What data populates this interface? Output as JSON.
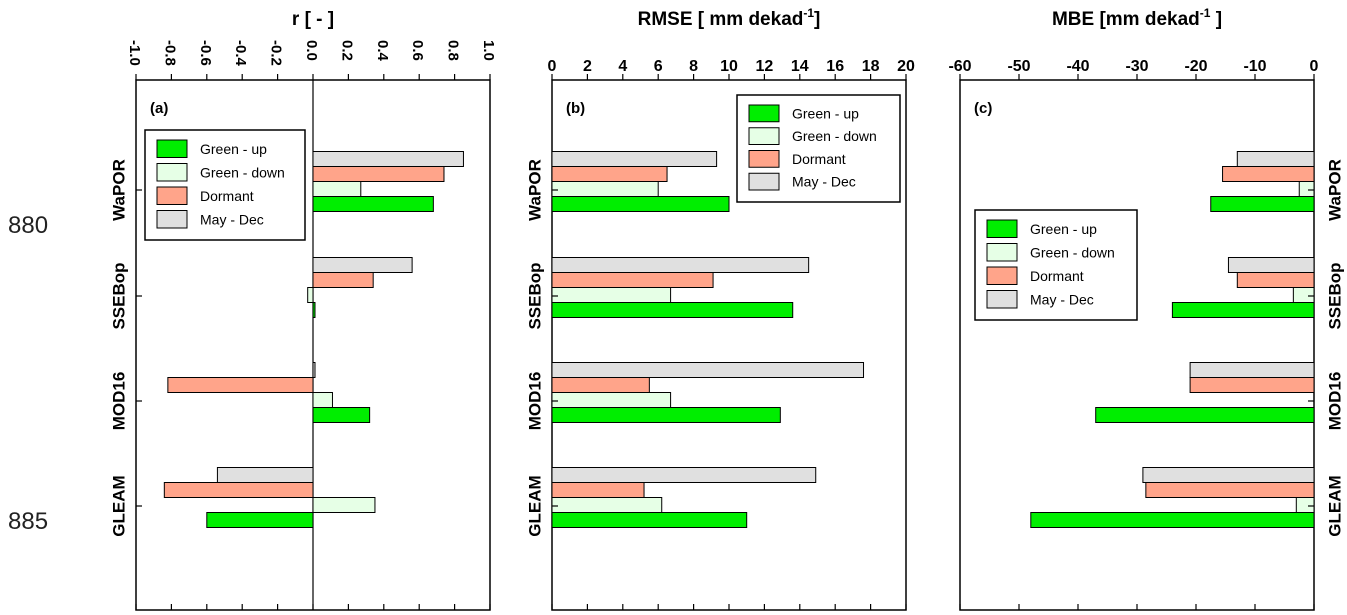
{
  "line_numbers": [
    "880",
    "885"
  ],
  "colors": {
    "green_up": "#00ee00",
    "green_down": "#e6ffe6",
    "dormant": "#ffa48a",
    "may_dec": "#e0e0e0",
    "axis": "#000000"
  },
  "chart_data": [
    {
      "type": "bar",
      "orientation": "horizontal",
      "panel_label": "(a)",
      "title": "r [ - ]",
      "title_sup": "",
      "title_tail": "",
      "xlim": [
        -1.0,
        1.0
      ],
      "x_ticks": [
        "-1.0",
        "-0.8",
        "-0.6",
        "-0.4",
        "-0.2",
        "0.0",
        "0.2",
        "0.4",
        "0.6",
        "0.8",
        "1.0"
      ],
      "x_axis_position": "top",
      "categories": [
        "WaPOR",
        "SSEBop",
        "MOD16",
        "GLEAM"
      ],
      "category_label_side": "left",
      "zero_line": true,
      "legend": {
        "placement": "upper-left",
        "entries": [
          "Green - up",
          "Green - down",
          "Dormant",
          "May - Dec"
        ]
      },
      "series": [
        {
          "name": "Green - up",
          "values": [
            0.68,
            0.01,
            0.32,
            -0.6
          ]
        },
        {
          "name": "Green - down",
          "values": [
            0.27,
            -0.03,
            0.11,
            0.35
          ]
        },
        {
          "name": "Dormant",
          "values": [
            0.74,
            0.34,
            -0.82,
            -0.84
          ]
        },
        {
          "name": "May - Dec",
          "values": [
            0.85,
            0.56,
            0.01,
            -0.54
          ]
        }
      ]
    },
    {
      "type": "bar",
      "orientation": "horizontal",
      "panel_label": "(b)",
      "title": "RMSE [ mm dekad",
      "title_sup": "-1",
      "title_tail": "]",
      "xlim": [
        0,
        20
      ],
      "x_ticks": [
        "0",
        "2",
        "4",
        "6",
        "8",
        "10",
        "12",
        "14",
        "16",
        "18",
        "20"
      ],
      "x_axis_position": "top",
      "categories": [
        "WaPOR",
        "SSEBop",
        "MOD16",
        "GLEAM"
      ],
      "category_label_side": "left",
      "zero_line": false,
      "legend": {
        "placement": "upper-right",
        "entries": [
          "Green - up",
          "Green - down",
          "Dormant",
          "May - Dec"
        ]
      },
      "series": [
        {
          "name": "Green - up",
          "values": [
            10.0,
            13.6,
            12.9,
            11.0
          ]
        },
        {
          "name": "Green - down",
          "values": [
            6.0,
            6.7,
            6.7,
            6.2
          ]
        },
        {
          "name": "Dormant",
          "values": [
            6.5,
            9.1,
            5.5,
            5.2
          ]
        },
        {
          "name": "May - Dec",
          "values": [
            9.3,
            14.5,
            17.6,
            14.9
          ]
        }
      ]
    },
    {
      "type": "bar",
      "orientation": "horizontal",
      "panel_label": "(c)",
      "title": "MBE [mm dekad",
      "title_sup": "-1",
      "title_tail": " ]",
      "xlim": [
        -60,
        0
      ],
      "x_ticks": [
        "-60",
        "-50",
        "-40",
        "-30",
        "-20",
        "-10",
        "0"
      ],
      "x_axis_position": "top",
      "categories": [
        "WaPOR",
        "SSEBop",
        "MOD16",
        "GLEAM"
      ],
      "category_label_side": "right",
      "zero_line": false,
      "legend": {
        "placement": "upper-left",
        "entries": [
          "Green - up",
          "Green - down",
          "Dormant",
          "May - Dec"
        ]
      },
      "series": [
        {
          "name": "Green - up",
          "values": [
            -17.5,
            -24.0,
            -37.0,
            -48.0
          ]
        },
        {
          "name": "Green - down",
          "values": [
            -2.5,
            -3.5,
            0,
            -3.0
          ]
        },
        {
          "name": "Dormant",
          "values": [
            -15.5,
            -13.0,
            -21.0,
            -28.5
          ]
        },
        {
          "name": "May - Dec",
          "values": [
            -13.0,
            -14.5,
            -21.0,
            -29.0
          ]
        }
      ]
    }
  ]
}
